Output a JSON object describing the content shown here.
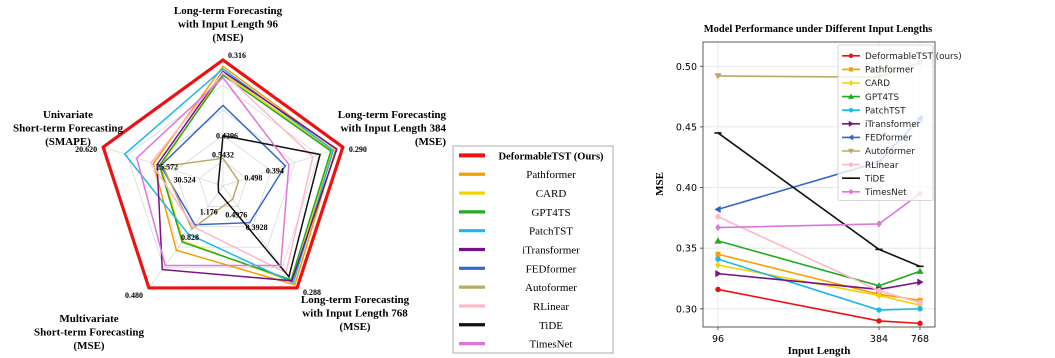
{
  "chart_data": [
    {
      "type": "radar",
      "axes": [
        {
          "label": [
            "Long-term Forecasting",
            "with Input Length 96",
            "(MSE)"
          ],
          "outer_tick": "0.316",
          "inner_tick": "0.5432"
        },
        {
          "label": [
            "Long-term Forecasting",
            "with Input Length 384",
            "(MSE)"
          ],
          "outer_tick": "0.290",
          "inner_tick": "0.498"
        },
        {
          "label": [
            "Long-term Forecasting",
            "with Input Length 768",
            "(MSE)"
          ],
          "outer_tick": "0.288",
          "inner_tick": "0.4976"
        },
        {
          "label": [
            "Multivariate",
            "Short-term Forecasting",
            "(MSE)"
          ],
          "outer_tick": "0.480",
          "inner_tick": "1.176"
        },
        {
          "label": [
            "Univariate",
            "Short-term Forecasting",
            "(SMAPE)"
          ],
          "outer_tick": "20.620",
          "inner_tick": "30.524"
        }
      ],
      "extra_ticks": [
        {
          "text": "0.4296",
          "axis": 0,
          "r": 0.4
        },
        {
          "text": "0.394",
          "axis": 1,
          "r": 0.4
        },
        {
          "text": "0.3928",
          "axis": 2,
          "r": 0.4
        },
        {
          "text": "0.828",
          "axis": 3,
          "r": 0.5
        },
        {
          "text": "25.572",
          "axis": 4,
          "r": 0.5
        }
      ],
      "series": [
        {
          "name": "DeformableTST (Ours)",
          "color": "#ee1111",
          "bold": true,
          "values": [
            1.0,
            1.0,
            1.0,
            1.0,
            1.0
          ]
        },
        {
          "name": "Pathformer",
          "color": "#f5a000",
          "values": [
            0.95,
            0.94,
            0.97,
            0.63,
            0.58
          ]
        },
        {
          "name": "CARD",
          "color": "#f2d200",
          "values": [
            0.9,
            0.91,
            0.94,
            0.54,
            0.52
          ]
        },
        {
          "name": "GPT4TS",
          "color": "#22aa22",
          "values": [
            0.88,
            0.9,
            0.92,
            0.55,
            0.53
          ]
        },
        {
          "name": "PatchTST",
          "color": "#1cb8e8",
          "values": [
            0.93,
            0.92,
            0.95,
            0.47,
            0.82
          ]
        },
        {
          "name": "iTransformer",
          "color": "#771188",
          "values": [
            0.91,
            0.95,
            0.93,
            0.82,
            0.55
          ]
        },
        {
          "name": "FEDformer",
          "color": "#3366cc",
          "values": [
            0.64,
            0.52,
            0.36,
            0.38,
            0.52
          ]
        },
        {
          "name": "Autoformer",
          "color": "#bbaa66",
          "values": [
            0.22,
            0.13,
            0.13,
            0.42,
            0.5
          ]
        },
        {
          "name": "RLinear",
          "color": "#ffb8c8",
          "values": [
            0.9,
            0.75,
            0.85,
            0.4,
            0.6
          ]
        },
        {
          "name": "TiDE",
          "color": "#111111",
          "values": [
            0.4,
            0.81,
            0.89,
            0.06,
            0.04
          ]
        },
        {
          "name": "TimesNet",
          "color": "#dd77dd",
          "values": [
            0.86,
            0.55,
            0.78,
            0.78,
            0.72
          ]
        }
      ]
    },
    {
      "type": "line",
      "title": "Model Performance under Different Input Lengths",
      "xlabel": "Input Length",
      "ylabel": "MSE",
      "x": [
        96,
        384,
        768
      ],
      "xticks": [
        "96",
        "384",
        "768"
      ],
      "ylim": [
        0.285,
        0.52
      ],
      "yticks": [
        "0.30",
        "0.35",
        "0.40",
        "0.45",
        "0.50"
      ],
      "grid": true,
      "legend_position": "top-right",
      "series": [
        {
          "name": "DeformableTST (ours)",
          "color": "#ee1111",
          "marker": "o",
          "values": [
            0.316,
            0.29,
            0.288
          ]
        },
        {
          "name": "Pathformer",
          "color": "#f5a000",
          "marker": "s",
          "values": [
            0.345,
            0.312,
            0.307
          ]
        },
        {
          "name": "CARD",
          "color": "#f2d200",
          "marker": "D",
          "values": [
            0.336,
            0.311,
            0.303
          ]
        },
        {
          "name": "GPT4TS",
          "color": "#22aa22",
          "marker": "^",
          "values": [
            0.356,
            0.319,
            0.331
          ]
        },
        {
          "name": "PatchTST",
          "color": "#1cb8e8",
          "marker": "o",
          "values": [
            0.341,
            0.299,
            0.3
          ]
        },
        {
          "name": "iTransformer",
          "color": "#771188",
          "marker": ">",
          "values": [
            0.329,
            0.316,
            0.322
          ]
        },
        {
          "name": "FEDformer",
          "color": "#3366cc",
          "marker": "<",
          "values": [
            0.382,
            0.421,
            0.457
          ]
        },
        {
          "name": "Autoformer",
          "color": "#bbaa66",
          "marker": "v",
          "values": [
            0.492,
            0.491,
            0.503
          ]
        },
        {
          "name": "RLinear",
          "color": "#ffb8c8",
          "marker": "o",
          "values": [
            0.376,
            0.315,
            0.305
          ]
        },
        {
          "name": "TiDE",
          "color": "#111111",
          "marker": "_",
          "values": [
            0.445,
            0.349,
            0.335
          ]
        },
        {
          "name": "TimesNet",
          "color": "#dd77dd",
          "marker": "D",
          "values": [
            0.367,
            0.37,
            0.395
          ]
        }
      ]
    }
  ]
}
